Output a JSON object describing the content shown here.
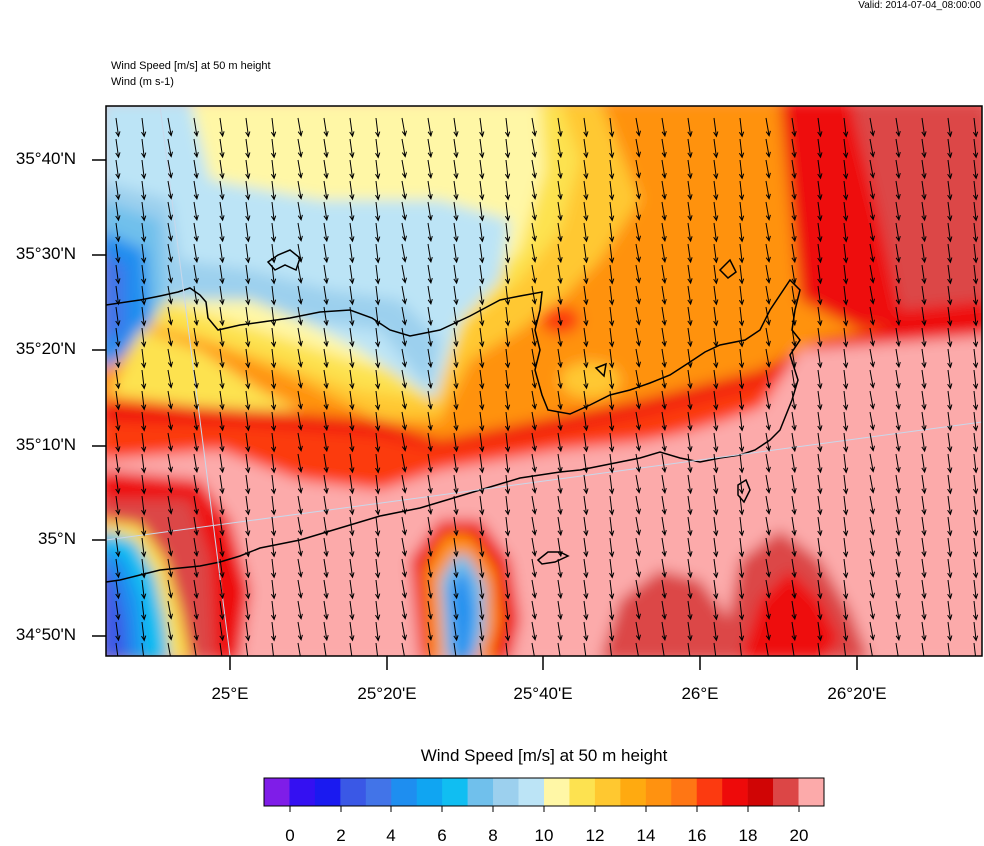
{
  "valid_time": "Valid: 2014-07-04_08:00:00",
  "title_line1": "Wind Speed [m/s] at 50 m height",
  "title_line2": "Wind   (m s-1)",
  "lat_labels": [
    "35°40'N",
    "35°30'N",
    "35°20'N",
    "35°10'N",
    "35°N",
    "34°50'N"
  ],
  "lon_labels": [
    "25°E",
    "25°20'E",
    "25°40'E",
    "26°E",
    "26°20'E"
  ],
  "colorbar": {
    "title": "Wind Speed [m/s] at 50 m height",
    "labels": [
      "0",
      "2",
      "4",
      "6",
      "8",
      "10",
      "12",
      "14",
      "16",
      "18",
      "20"
    ],
    "colors": [
      "#7f1de8",
      "#3410f2",
      "#1a1af0",
      "#3a58e6",
      "#4274e8",
      "#1e8ef0",
      "#10a5f2",
      "#10bef2",
      "#70c0ec",
      "#9cd0ee",
      "#bce4f6",
      "#fff7a6",
      "#fde250",
      "#ffc830",
      "#ffaa10",
      "#ff9210",
      "#ff7614",
      "#fc3a10",
      "#ee0a0a",
      "#d00505",
      "#dc4646",
      "#fcaaaa"
    ]
  },
  "colors": {
    "land_boundary": "#000000",
    "background": "#ffffff"
  }
}
